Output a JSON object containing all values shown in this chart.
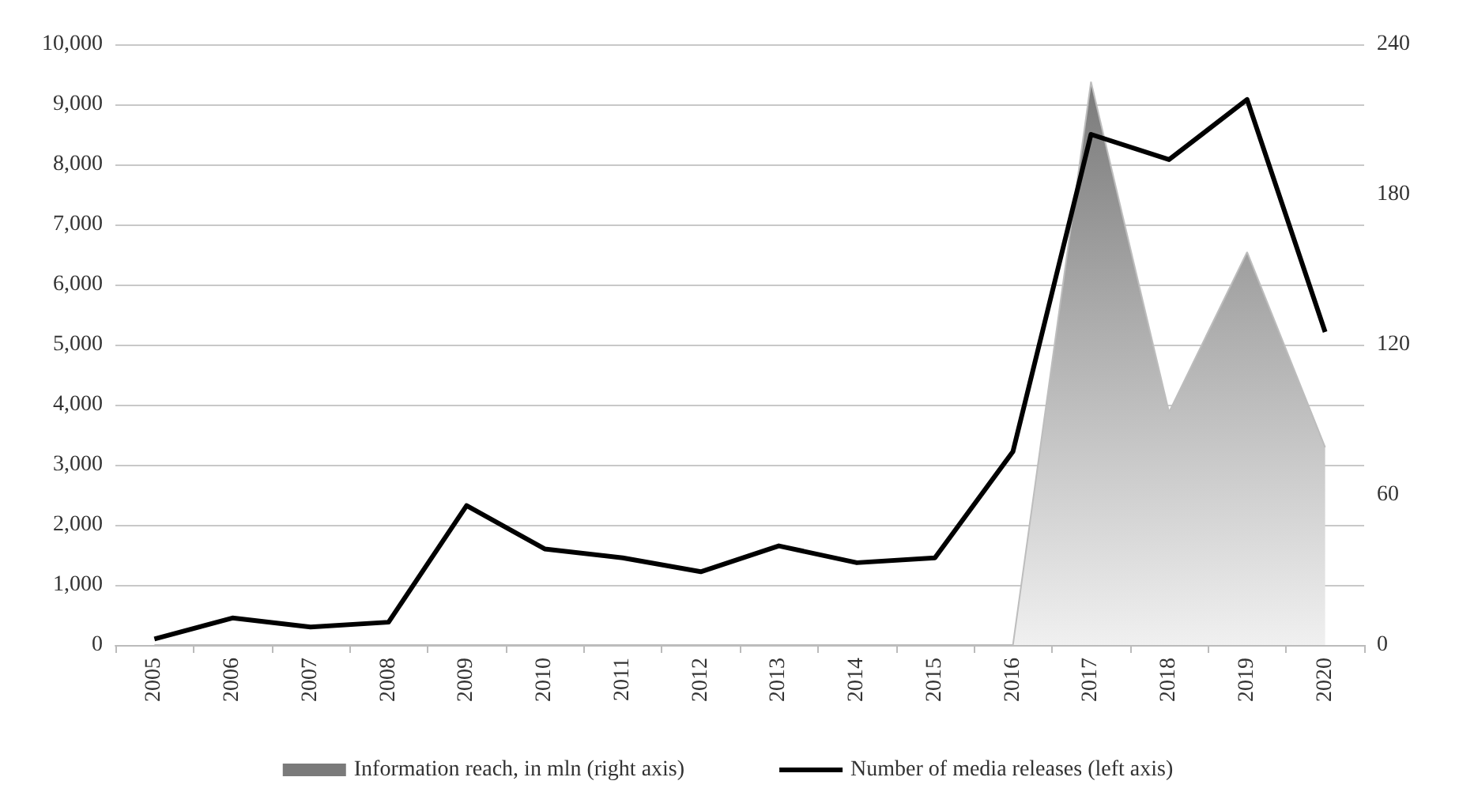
{
  "chart_data": {
    "type": "line",
    "categories": [
      "2005",
      "2006",
      "2007",
      "2008",
      "2009",
      "2010",
      "2011",
      "2012",
      "2013",
      "2014",
      "2015",
      "2016",
      "2017",
      "2018",
      "2019",
      "2020"
    ],
    "series": [
      {
        "name": "Information reach, in mln (right axis)",
        "type": "area",
        "axis": "y2",
        "color": "#7a7a7a",
        "values": [
          0,
          0,
          0,
          0,
          0,
          0,
          0,
          0,
          0,
          0,
          0,
          0,
          225,
          93,
          157,
          79
        ]
      },
      {
        "name": "Number of media releases (left axis)",
        "color": "#000000",
        "values": [
          100,
          450,
          300,
          380,
          2320,
          1600,
          1450,
          1220,
          1650,
          1370,
          1450,
          3220,
          8500,
          8080,
          9080,
          5210
        ]
      }
    ],
    "ylim": [
      0,
      10000
    ],
    "yticks": [
      0,
      {
        "value": 1000,
        "label": "1,000"
      },
      {
        "value": 2000,
        "label": "2,000"
      },
      {
        "value": 3000,
        "label": "3,000"
      },
      {
        "value": 4000,
        "label": "4,000"
      },
      {
        "value": 5000,
        "label": "5,000"
      },
      {
        "value": 6000,
        "label": "6,000"
      },
      {
        "value": 7000,
        "label": "7,000"
      },
      {
        "value": 8000,
        "label": "8,000"
      },
      {
        "value": 9000,
        "label": "9,000"
      },
      {
        "value": 10000,
        "label": "10,000"
      }
    ],
    "y2lim": [
      0,
      240
    ],
    "y2ticks": [
      0,
      60,
      120,
      180,
      240
    ],
    "grid": "y",
    "legend": "bottom",
    "marker": "none"
  }
}
